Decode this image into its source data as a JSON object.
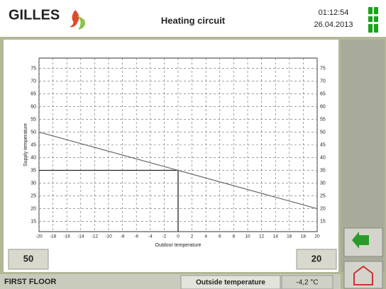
{
  "header": {
    "logo": "GILLES",
    "title": "Heating circuit",
    "time": "01:12:54",
    "date": "26.04.2013"
  },
  "chart_data": {
    "type": "line",
    "x_label": "Outdoor temperature",
    "y_label": "Supply temperature",
    "x": [
      -20,
      20
    ],
    "values": [
      50,
      20
    ],
    "color": "#707070",
    "xlim": [
      -20,
      20
    ],
    "ylim": [
      11,
      79
    ],
    "xticks": [
      -20,
      -18,
      -16,
      -14,
      -12,
      -10,
      -8,
      -6,
      -4,
      -2,
      0,
      2,
      4,
      6,
      8,
      10,
      12,
      14,
      16,
      18,
      20
    ],
    "yticks": [
      15,
      20,
      25,
      30,
      35,
      40,
      45,
      50,
      55,
      60,
      65,
      70,
      75
    ],
    "grid": true,
    "marker": {
      "x": 0,
      "y": 35
    }
  },
  "status": {
    "zone": "FIRST FLOOR",
    "label": "Outside temperature",
    "value": "-4,2 °C"
  }
}
